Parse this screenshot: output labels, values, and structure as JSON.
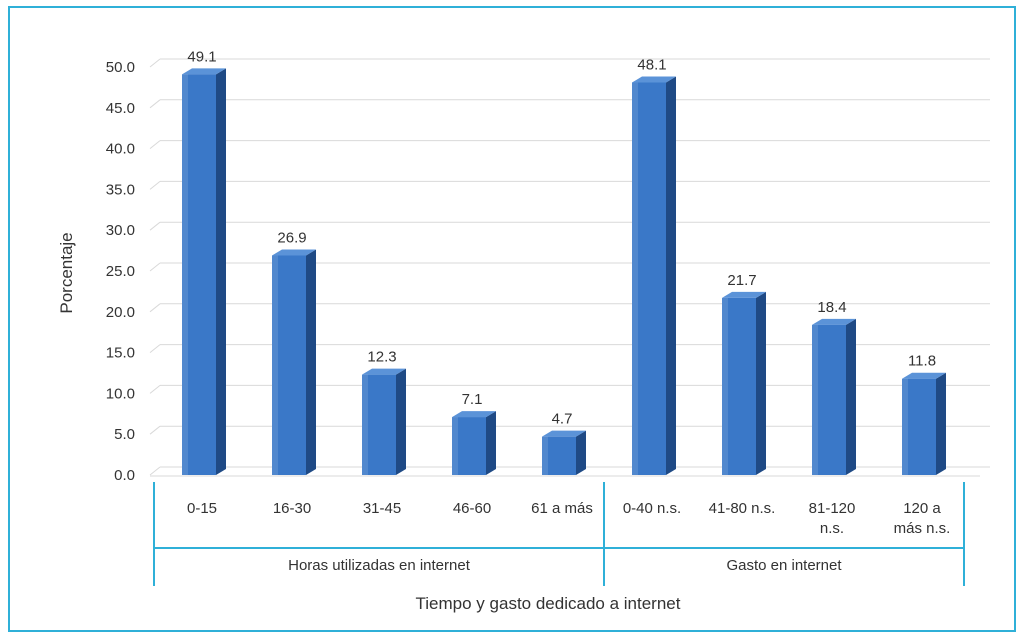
{
  "chart_data": {
    "type": "bar",
    "categories": [
      "0-15",
      "16-30",
      "31-45",
      "46-60",
      "61 a más",
      "0-40 n.s.",
      "41-80 n.s.",
      "81-120 n.s.",
      "120 a más n.s."
    ],
    "category_lines": [
      [
        "0-15"
      ],
      [
        "16-30"
      ],
      [
        "31-45"
      ],
      [
        "46-60"
      ],
      [
        "61 a más"
      ],
      [
        "0-40 n.s."
      ],
      [
        "41-80 n.s."
      ],
      [
        "81-120",
        "n.s."
      ],
      [
        "120 a",
        "más n.s."
      ]
    ],
    "groups": [
      {
        "label": "Horas utilizadas en internet",
        "categories": [
          "0-15",
          "16-30",
          "31-45",
          "46-60",
          "61 a más"
        ]
      },
      {
        "label": "Gasto en internet",
        "categories": [
          "0-40 n.s.",
          "41-80 n.s.",
          "81-120 n.s.",
          "120 a más n.s."
        ]
      }
    ],
    "values": [
      49.1,
      26.9,
      12.3,
      7.1,
      4.7,
      48.1,
      21.7,
      18.4,
      11.8
    ],
    "value_labels": [
      "49.1",
      "26.9",
      "12.3",
      "7.1",
      "4.7",
      "48.1",
      "21.7",
      "18.4",
      "11.8"
    ],
    "xlabel": "Tiempo y gasto dedicado a internet",
    "ylabel": "Porcentaje",
    "ylim": [
      0,
      50
    ],
    "yticks": [
      "0.0",
      "5.0",
      "10.0",
      "15.0",
      "20.0",
      "25.0",
      "30.0",
      "35.0",
      "40.0",
      "45.0",
      "50.0"
    ],
    "grid": true,
    "legend": "none",
    "colors": {
      "bar_front": "#3a78c8",
      "bar_side": "#1f4a85",
      "bar_top": "#5b93d8",
      "group_border": "#2fb0d8",
      "grid": "#d9d9d9",
      "frame": "#2fb0d8"
    }
  }
}
